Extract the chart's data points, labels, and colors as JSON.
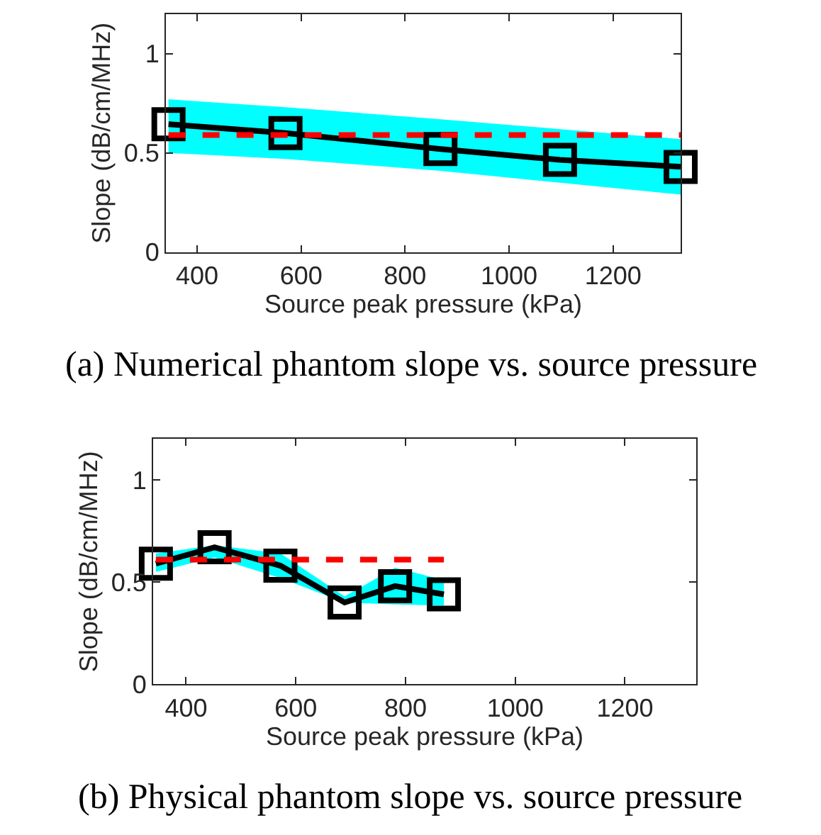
{
  "chart_data": [
    {
      "type": "line",
      "xlabel": "Source peak pressure (kPa)",
      "ylabel": "Slope (dB/cm/MHz)",
      "xlim": [
        340,
        1330
      ],
      "xticks": [
        400,
        600,
        800,
        1000,
        1200
      ],
      "ylim": [
        0,
        1.2
      ],
      "yticks": [
        0,
        0.5,
        1
      ],
      "marker": "square",
      "annotations": [
        "(a) Numerical phantom slope vs. source pressure"
      ],
      "series": [
        {
          "color": "#000000",
          "x": [
            345,
            570,
            868,
            1098,
            1330
          ],
          "values": [
            0.645,
            0.6,
            0.52,
            0.465,
            0.43
          ],
          "lower": [
            0.5,
            0.47,
            0.41,
            0.35,
            0.29
          ],
          "upper": [
            0.77,
            0.73,
            0.67,
            0.62,
            0.57
          ]
        },
        {
          "color": "#ff0000",
          "x": [
            345,
            1330
          ],
          "values": [
            0.59,
            0.59
          ],
          "marker": "none",
          "line_style": "dashed"
        }
      ]
    },
    {
      "type": "line",
      "xlabel": "Source peak pressure (kPa)",
      "ylabel": "Slope (dB/cm/MHz)",
      "xlim": [
        340,
        1330
      ],
      "xticks": [
        400,
        600,
        800,
        1000,
        1200
      ],
      "ylim": [
        0,
        1.2
      ],
      "yticks": [
        0,
        0.5,
        1
      ],
      "marker": "square",
      "annotations": [
        "(b) Physical phantom slope vs. source pressure"
      ],
      "series": [
        {
          "color": "#000000",
          "x": [
            345,
            452,
            572,
            689,
            781,
            870
          ],
          "values": [
            0.59,
            0.67,
            0.58,
            0.4,
            0.48,
            0.44
          ],
          "lower": [
            0.55,
            0.62,
            0.52,
            0.4,
            0.39,
            0.385
          ],
          "upper": [
            0.64,
            0.68,
            0.64,
            0.43,
            0.57,
            0.51
          ]
        },
        {
          "color": "#ff0000",
          "x": [
            345,
            870
          ],
          "values": [
            0.61,
            0.61
          ],
          "marker": "none",
          "line_style": "dashed"
        }
      ]
    }
  ]
}
